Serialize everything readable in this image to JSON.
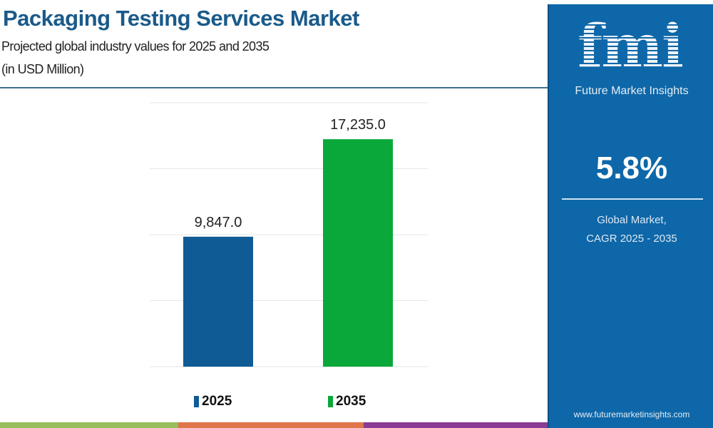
{
  "chart_data": {
    "type": "bar",
    "title": "Packaging Testing Services Market",
    "subtitle": "Projected global industry values for 2025 and 2035",
    "unit_label": "(in USD Million)",
    "categories": [
      "2025",
      "2035"
    ],
    "values": [
      9847.0,
      17235.0
    ],
    "data_labels": [
      "9,847.0",
      "17,235.0"
    ],
    "colors": [
      "#0f5b96",
      "#0aa83a"
    ],
    "ylim": [
      0,
      20000
    ],
    "grid": true,
    "legend": {
      "placement": "bottom",
      "entries": [
        "2025",
        "2035"
      ]
    }
  },
  "sidebar": {
    "logo_letters": "fmi",
    "brand": "Future Market Insights",
    "cagr_value": "5.8%",
    "cagr_label_1": "Global Market,",
    "cagr_label_2": "CAGR 2025 - 2035",
    "website": "www.futuremarketinsights.com",
    "background_color": "#0e67a8"
  },
  "footer_stripe_colors": [
    "#97bd5c",
    "#e0744a",
    "#8a3b94"
  ]
}
